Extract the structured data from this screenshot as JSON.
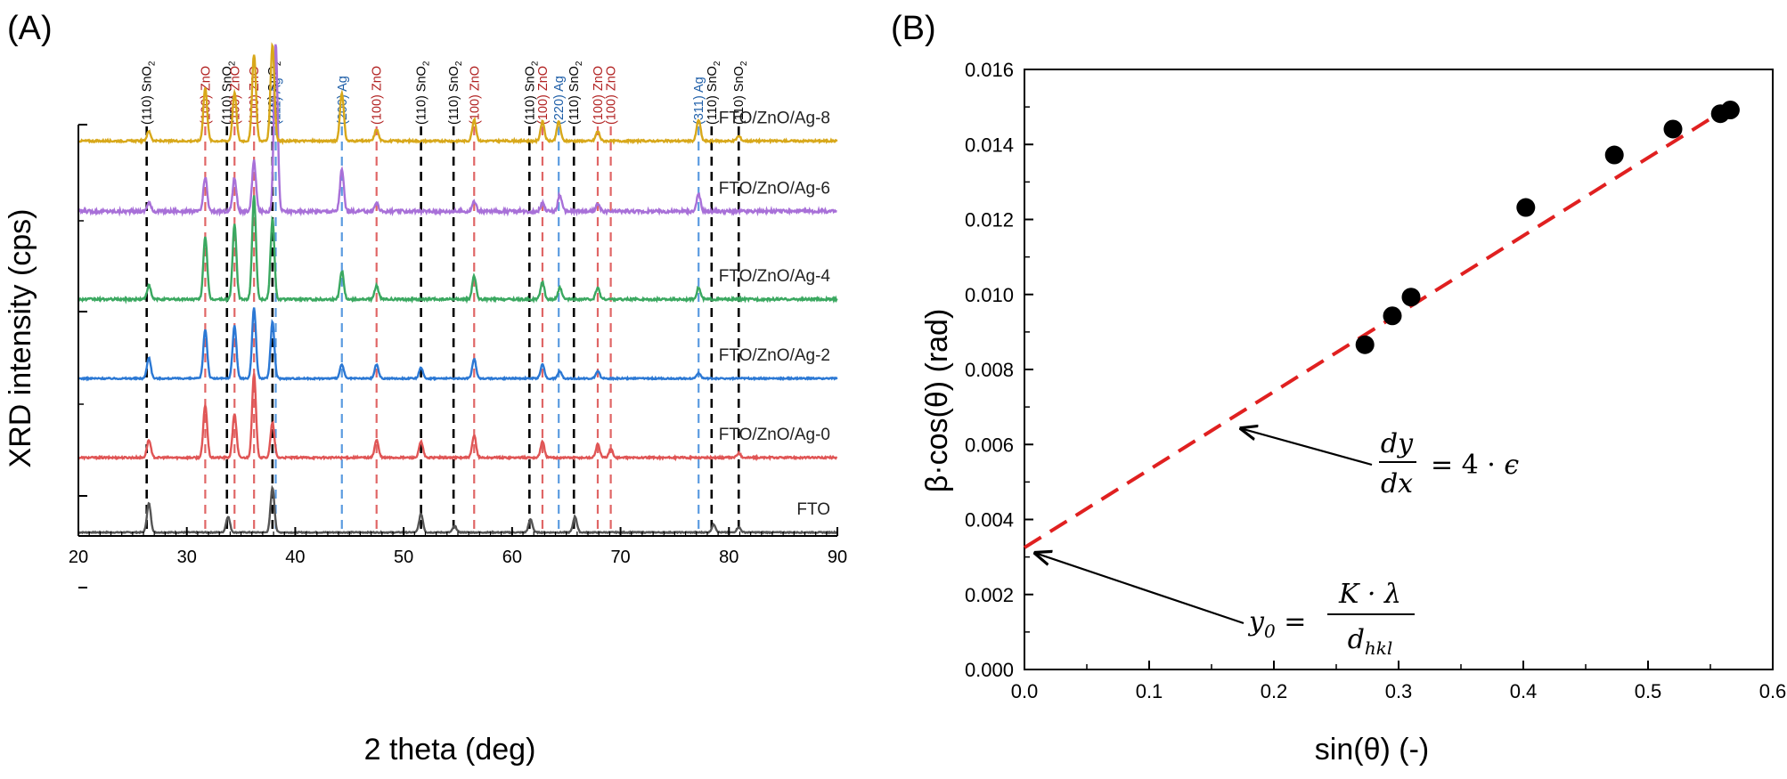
{
  "chart_data": [
    {
      "panel_label": "(A)",
      "type": "line",
      "xlabel": "2 theta (deg)",
      "ylabel": "XRD intensity (cps)",
      "xlim": [
        20,
        90
      ],
      "x_ticks": [
        "20",
        "30",
        "40",
        "50",
        "60",
        "70",
        "80",
        "90"
      ],
      "colors": {
        "black": "#000000",
        "red": "#b22222",
        "blue": "#1f5fa8"
      },
      "series": [
        {
          "name": "FTO",
          "color": "#555555",
          "offset": 0,
          "scale": 0.12
        },
        {
          "name": "FTO/ZnO/Ag-0",
          "color": "#e05555",
          "offset": 0.17,
          "scale": 0.2
        },
        {
          "name": "FTO/ZnO/Ag-2",
          "color": "#2b78d4",
          "offset": 0.35,
          "scale": 0.16
        },
        {
          "name": "FTO/ZnO/Ag-4",
          "color": "#3aa860",
          "offset": 0.53,
          "scale": 0.26
        },
        {
          "name": "FTO/ZnO/Ag-6",
          "color": "#a870d8",
          "offset": 0.73,
          "scale": 0.38
        },
        {
          "name": "FTO/ZnO/Ag-8",
          "color": "#d8a81a",
          "offset": 0.89,
          "scale": 0.22
        }
      ],
      "reference_lines": [
        {
          "x": 26.3,
          "label": "(110) SnO",
          "sub": "2",
          "color": "black"
        },
        {
          "x": 31.7,
          "label": "(100) ZnO",
          "sub": "",
          "color": "red"
        },
        {
          "x": 33.7,
          "label": "(110) SnO",
          "sub": "2",
          "color": "black"
        },
        {
          "x": 34.4,
          "label": "(100) ZnO",
          "sub": "",
          "color": "red"
        },
        {
          "x": 36.2,
          "label": "(100) ZnO",
          "sub": "",
          "color": "red"
        },
        {
          "x": 37.9,
          "label": "(110) SnO",
          "sub": "2",
          "color": "black"
        },
        {
          "x": 38.2,
          "label": "(111) Ag",
          "sub": "",
          "color": "blue"
        },
        {
          "x": 44.3,
          "label": "(200) Ag",
          "sub": "",
          "color": "blue"
        },
        {
          "x": 47.5,
          "label": "(100) ZnO",
          "sub": "",
          "color": "red"
        },
        {
          "x": 51.6,
          "label": "(110) SnO",
          "sub": "2",
          "color": "black"
        },
        {
          "x": 54.6,
          "label": "(110) SnO",
          "sub": "2",
          "color": "black"
        },
        {
          "x": 56.5,
          "label": "(100) ZnO",
          "sub": "",
          "color": "red"
        },
        {
          "x": 61.6,
          "label": "(110) SnO",
          "sub": "2",
          "color": "black"
        },
        {
          "x": 62.8,
          "label": "(100) ZnO",
          "sub": "",
          "color": "red"
        },
        {
          "x": 64.3,
          "label": "(220) Ag",
          "sub": "",
          "color": "blue"
        },
        {
          "x": 65.7,
          "label": "(110) SnO",
          "sub": "2",
          "color": "black"
        },
        {
          "x": 67.9,
          "label": "(100) ZnO",
          "sub": "",
          "color": "red"
        },
        {
          "x": 69.1,
          "label": "(100) ZnO",
          "sub": "",
          "color": "red"
        },
        {
          "x": 77.2,
          "label": "(311) Ag",
          "sub": "",
          "color": "blue"
        },
        {
          "x": 78.4,
          "label": "(110) SnO",
          "sub": "2",
          "color": "black"
        },
        {
          "x": 80.9,
          "label": "(110) SnO",
          "sub": "2",
          "color": "black"
        }
      ]
    },
    {
      "panel_label": "(B)",
      "type": "scatter",
      "xlabel": "sin(θ) (-)",
      "ylabel": "β·cos(θ) (rad)",
      "xlim": [
        0.0,
        0.6
      ],
      "ylim": [
        0.0,
        0.016
      ],
      "x_ticks": [
        "0.0",
        "0.1",
        "0.2",
        "0.3",
        "0.4",
        "0.5",
        "0.6"
      ],
      "y_ticks": [
        "0.000",
        "0.002",
        "0.004",
        "0.006",
        "0.008",
        "0.010",
        "0.012",
        "0.014",
        "0.016"
      ],
      "points": [
        {
          "x": 0.273,
          "y": 0.00866
        },
        {
          "x": 0.295,
          "y": 0.00943
        },
        {
          "x": 0.31,
          "y": 0.00993
        },
        {
          "x": 0.402,
          "y": 0.01232
        },
        {
          "x": 0.473,
          "y": 0.01372
        },
        {
          "x": 0.52,
          "y": 0.01441
        },
        {
          "x": 0.558,
          "y": 0.01482
        },
        {
          "x": 0.566,
          "y": 0.01492
        }
      ],
      "fit_line": {
        "x": [
          0.0,
          0.57
        ],
        "y": [
          0.00325,
          0.0151
        ],
        "color": "#e02020"
      },
      "annotations": [
        {
          "text": "dy/dx = 4·ε",
          "arrow_to": {
            "x": 0.168,
            "y": 0.00652
          }
        },
        {
          "text": "y0 = K·λ/dhkl",
          "arrow_to": {
            "x": 0.003,
            "y": 0.0032
          }
        }
      ]
    }
  ]
}
